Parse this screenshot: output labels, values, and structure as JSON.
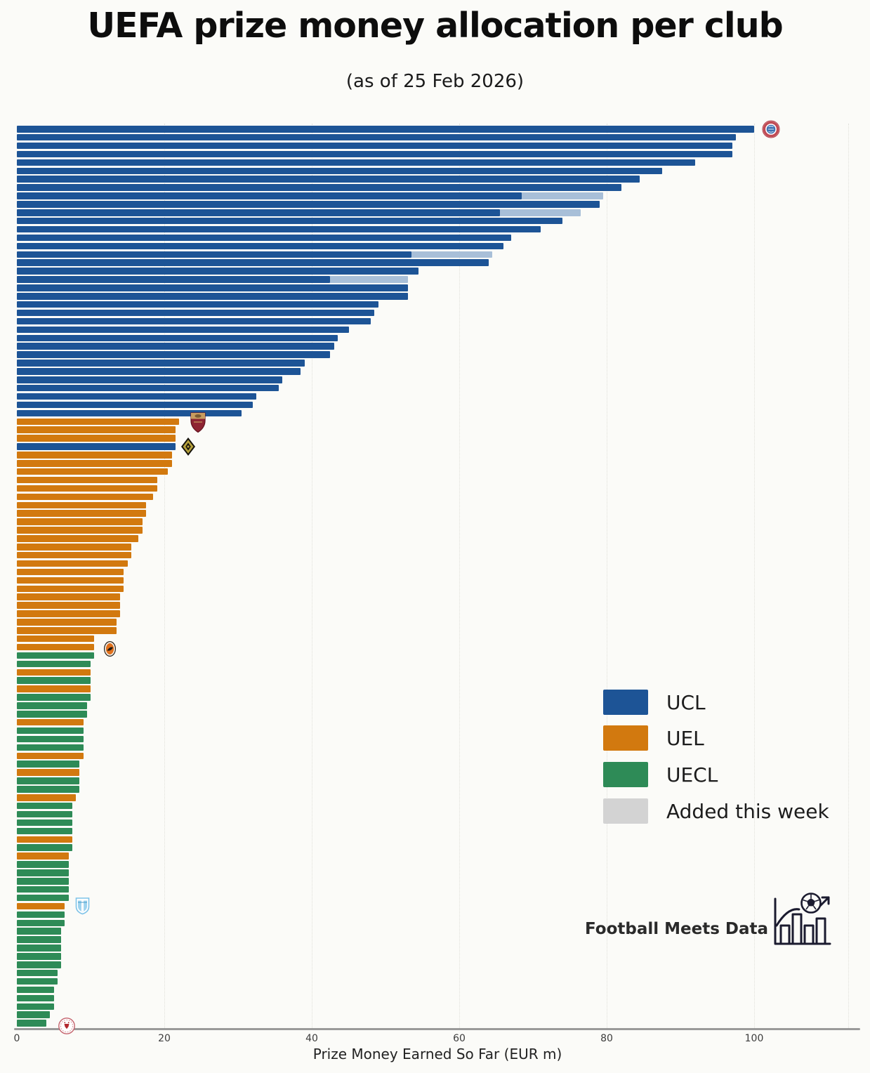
{
  "title": "UEFA prize money allocation per club",
  "subtitle": "(as of 25 Feb 2026)",
  "brand": "Football Meets Data",
  "legend": [
    {
      "label": "UCL",
      "color": "#1d5496"
    },
    {
      "label": "UEL",
      "color": "#d2790f"
    },
    {
      "label": "UECL",
      "color": "#2e8b57"
    },
    {
      "label": "Added this week",
      "color": "#d3d3d3"
    }
  ],
  "chart_data": {
    "type": "bar",
    "orientation": "horizontal",
    "title": "UEFA prize money allocation per club",
    "subtitle": "(as of 25 Feb 2026)",
    "xlabel": "Prize Money Earned So Far (EUR m)",
    "x_ticks": [
      0,
      20,
      40,
      60,
      80,
      100
    ],
    "xlim": [
      0,
      114
    ],
    "grid": "vertical-dotted",
    "legend_position": "center-right",
    "colors": {
      "UCL": "#1d5496",
      "UEL": "#d2790f",
      "UECL": "#2e8b57",
      "added_segment": "#a8bfd8",
      "added_legend": "#d3d3d3"
    },
    "series_note": "108 clubs, sorted by prize money; value = EUR m earned so far; add = EUR m added this week (light segment); logos mark selected clubs",
    "bars": [
      {
        "v": 100,
        "c": "UCL",
        "logo": "bayern-munich"
      },
      {
        "v": 97.5,
        "c": "UCL"
      },
      {
        "v": 97,
        "c": "UCL"
      },
      {
        "v": 97,
        "c": "UCL"
      },
      {
        "v": 92,
        "c": "UCL"
      },
      {
        "v": 87.5,
        "c": "UCL"
      },
      {
        "v": 84.5,
        "c": "UCL"
      },
      {
        "v": 82,
        "c": "UCL"
      },
      {
        "v": 68.5,
        "c": "UCL",
        "add": 11
      },
      {
        "v": 79,
        "c": "UCL"
      },
      {
        "v": 65.5,
        "c": "UCL",
        "add": 11
      },
      {
        "v": 74,
        "c": "UCL"
      },
      {
        "v": 71,
        "c": "UCL"
      },
      {
        "v": 67,
        "c": "UCL"
      },
      {
        "v": 66,
        "c": "UCL"
      },
      {
        "v": 53.5,
        "c": "UCL",
        "add": 11
      },
      {
        "v": 64,
        "c": "UCL"
      },
      {
        "v": 54.5,
        "c": "UCL"
      },
      {
        "v": 42.5,
        "c": "UCL",
        "add": 10.5
      },
      {
        "v": 53,
        "c": "UCL"
      },
      {
        "v": 53,
        "c": "UCL"
      },
      {
        "v": 49,
        "c": "UCL"
      },
      {
        "v": 48.5,
        "c": "UCL"
      },
      {
        "v": 48,
        "c": "UCL"
      },
      {
        "v": 45,
        "c": "UCL"
      },
      {
        "v": 43.5,
        "c": "UCL"
      },
      {
        "v": 43,
        "c": "UCL"
      },
      {
        "v": 42.5,
        "c": "UCL"
      },
      {
        "v": 39,
        "c": "UCL"
      },
      {
        "v": 38.5,
        "c": "UCL"
      },
      {
        "v": 36,
        "c": "UCL"
      },
      {
        "v": 35.5,
        "c": "UCL"
      },
      {
        "v": 32.5,
        "c": "UCL"
      },
      {
        "v": 32,
        "c": "UCL"
      },
      {
        "v": 30.5,
        "c": "UCL"
      },
      {
        "v": 22,
        "c": "UEL",
        "logo": "as-roma"
      },
      {
        "v": 21.5,
        "c": "UEL"
      },
      {
        "v": 21.5,
        "c": "UEL"
      },
      {
        "v": 21.5,
        "c": "UCL",
        "logo": "young-boys"
      },
      {
        "v": 21,
        "c": "UEL"
      },
      {
        "v": 21,
        "c": "UEL"
      },
      {
        "v": 20.5,
        "c": "UEL"
      },
      {
        "v": 19,
        "c": "UEL"
      },
      {
        "v": 19,
        "c": "UEL"
      },
      {
        "v": 18.5,
        "c": "UEL"
      },
      {
        "v": 17.5,
        "c": "UEL"
      },
      {
        "v": 17.5,
        "c": "UEL"
      },
      {
        "v": 17,
        "c": "UEL"
      },
      {
        "v": 17,
        "c": "UEL"
      },
      {
        "v": 16.5,
        "c": "UEL"
      },
      {
        "v": 15.5,
        "c": "UEL"
      },
      {
        "v": 15.5,
        "c": "UEL"
      },
      {
        "v": 15,
        "c": "UEL"
      },
      {
        "v": 14.5,
        "c": "UEL"
      },
      {
        "v": 14.5,
        "c": "UEL"
      },
      {
        "v": 14.5,
        "c": "UEL"
      },
      {
        "v": 14,
        "c": "UEL"
      },
      {
        "v": 14,
        "c": "UEL"
      },
      {
        "v": 14,
        "c": "UEL"
      },
      {
        "v": 13.5,
        "c": "UEL"
      },
      {
        "v": 13.5,
        "c": "UEL"
      },
      {
        "v": 10.5,
        "c": "UEL"
      },
      {
        "v": 10.5,
        "c": "UEL",
        "logo": "shakhtar-donetsk"
      },
      {
        "v": 10.5,
        "c": "UECL"
      },
      {
        "v": 10,
        "c": "UECL"
      },
      {
        "v": 10,
        "c": "UEL"
      },
      {
        "v": 10,
        "c": "UECL"
      },
      {
        "v": 10,
        "c": "UEL"
      },
      {
        "v": 10,
        "c": "UECL"
      },
      {
        "v": 9.5,
        "c": "UECL"
      },
      {
        "v": 9.5,
        "c": "UECL"
      },
      {
        "v": 9,
        "c": "UEL"
      },
      {
        "v": 9,
        "c": "UECL"
      },
      {
        "v": 9,
        "c": "UECL"
      },
      {
        "v": 9,
        "c": "UECL"
      },
      {
        "v": 9,
        "c": "UEL"
      },
      {
        "v": 8.5,
        "c": "UECL"
      },
      {
        "v": 8.5,
        "c": "UEL"
      },
      {
        "v": 8.5,
        "c": "UECL"
      },
      {
        "v": 8.5,
        "c": "UECL"
      },
      {
        "v": 8,
        "c": "UEL"
      },
      {
        "v": 7.5,
        "c": "UECL"
      },
      {
        "v": 7.5,
        "c": "UECL"
      },
      {
        "v": 7.5,
        "c": "UECL"
      },
      {
        "v": 7.5,
        "c": "UECL"
      },
      {
        "v": 7.5,
        "c": "UEL"
      },
      {
        "v": 7.5,
        "c": "UECL"
      },
      {
        "v": 7,
        "c": "UEL"
      },
      {
        "v": 7,
        "c": "UECL"
      },
      {
        "v": 7,
        "c": "UECL"
      },
      {
        "v": 7,
        "c": "UECL"
      },
      {
        "v": 7,
        "c": "UECL"
      },
      {
        "v": 7,
        "c": "UECL"
      },
      {
        "v": 6.5,
        "c": "UEL",
        "logo": "malmo-ff"
      },
      {
        "v": 6.5,
        "c": "UECL"
      },
      {
        "v": 6.5,
        "c": "UECL"
      },
      {
        "v": 6,
        "c": "UECL"
      },
      {
        "v": 6,
        "c": "UECL"
      },
      {
        "v": 6,
        "c": "UECL"
      },
      {
        "v": 6,
        "c": "UECL"
      },
      {
        "v": 6,
        "c": "UECL"
      },
      {
        "v": 5.5,
        "c": "UECL"
      },
      {
        "v": 5.5,
        "c": "UECL"
      },
      {
        "v": 5,
        "c": "UECL"
      },
      {
        "v": 5,
        "c": "UECL"
      },
      {
        "v": 5,
        "c": "UECL"
      },
      {
        "v": 4.5,
        "c": "UECL"
      },
      {
        "v": 4,
        "c": "UECL",
        "logo": "red-white-crest"
      }
    ]
  }
}
